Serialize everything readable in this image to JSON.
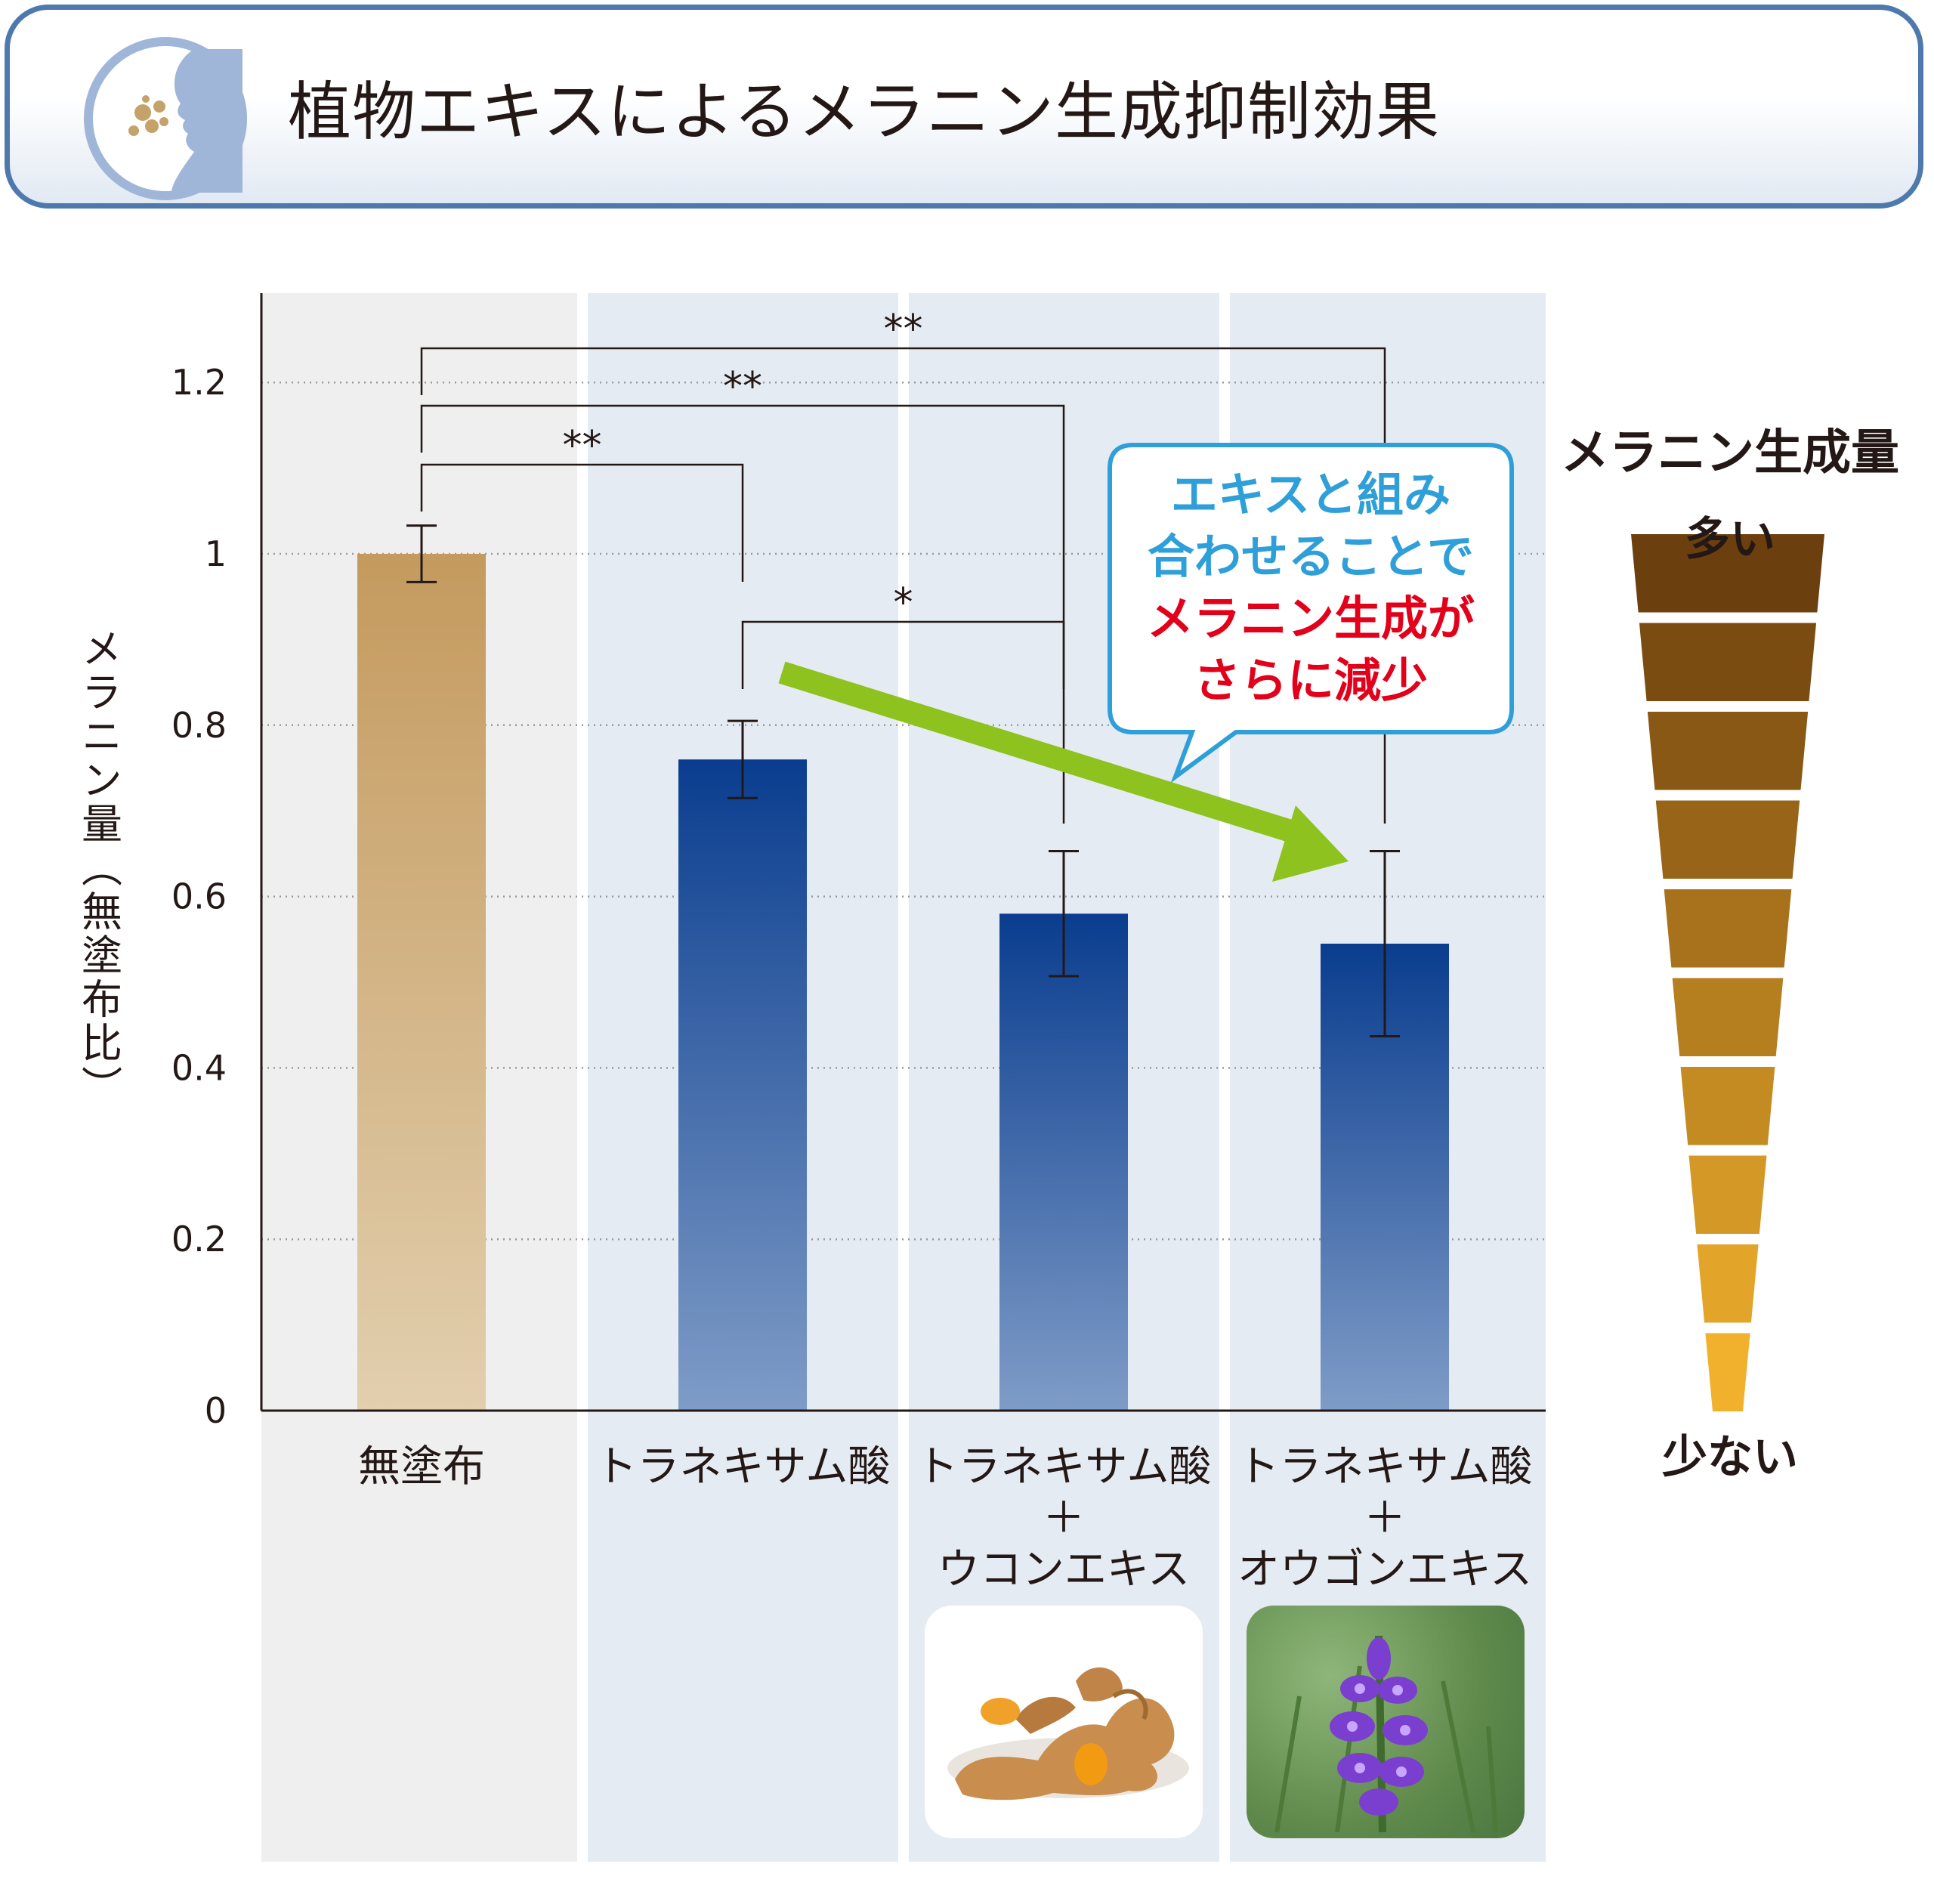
{
  "header": {
    "title": "植物エキスによるメラニン生成抑制効果",
    "icon": "face-with-spots-icon"
  },
  "chart_data": {
    "type": "bar",
    "categories": [
      [
        "無塗布"
      ],
      [
        "トラネキサム酸"
      ],
      [
        "トラネキサム酸",
        "＋",
        "ウコンエキス"
      ],
      [
        "トラネキサム酸",
        "＋",
        "オウゴンエキス"
      ]
    ],
    "values": [
      1.0,
      0.76,
      0.58,
      0.545
    ],
    "error": [
      0.033,
      0.045,
      0.073,
      0.108
    ],
    "ylabel": "メラニン量（無塗布比）",
    "ylim": [
      0,
      1.3
    ],
    "yticks": [
      "0",
      "0.2",
      "0.4",
      "0.6",
      "0.8",
      "1",
      "1.2"
    ],
    "grid": "dotted horizontal",
    "colors": {
      "control_bar": "#c49a5e",
      "treatment_bar": "#0a3d8f",
      "control_band": "#efefef",
      "treatment_band": "#e5ebf3",
      "arrow": "#8dc21f"
    },
    "significance": [
      {
        "from": 0,
        "to": 1,
        "label": "**"
      },
      {
        "from": 0,
        "to": 2,
        "label": "**"
      },
      {
        "from": 0,
        "to": 3,
        "label": "**"
      },
      {
        "from": 1,
        "to": 2,
        "label": "*"
      }
    ]
  },
  "callout": {
    "line1": "エキスと組み",
    "line2": "合わせることで",
    "line3": "メラニン生成が",
    "line4": "さらに減少"
  },
  "legend": {
    "title": "メラニン生成量",
    "high": "多い",
    "low": "少ない",
    "levels": 10,
    "color_high": "#6b3f0e",
    "color_low": "#f1b12c"
  },
  "photos": {
    "turmeric": "turmeric-root-photo",
    "skullcap": "skullcap-flower-photo"
  }
}
